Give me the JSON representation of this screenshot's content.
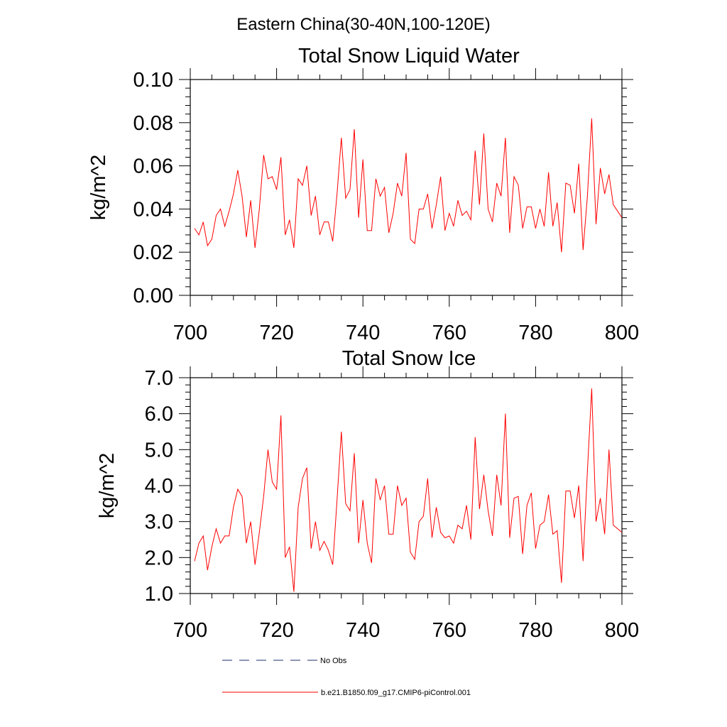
{
  "figure_title": "Eastern China(30-40N,100-120E)",
  "chart_data": [
    {
      "type": "line",
      "title": "Total Snow Liquid Water",
      "ylabel": "kg/m^2",
      "xlabel": "",
      "xlim": [
        700,
        800
      ],
      "ylim": [
        0.0,
        0.1
      ],
      "xticks": [
        700,
        720,
        740,
        760,
        780,
        800
      ],
      "yticks": [
        0.0,
        0.02,
        0.04,
        0.06,
        0.08,
        0.1
      ],
      "ytick_labels": [
        "0.00",
        "0.02",
        "0.04",
        "0.06",
        "0.08",
        "0.10"
      ],
      "series": [
        {
          "name": "b.e21.B1850.f09_g17.CMIP6-piControl.001",
          "color": "#ff0000",
          "x_start": 701,
          "values": [
            0.031,
            0.028,
            0.034,
            0.023,
            0.026,
            0.037,
            0.04,
            0.032,
            0.039,
            0.047,
            0.058,
            0.046,
            0.027,
            0.044,
            0.022,
            0.04,
            0.065,
            0.054,
            0.055,
            0.049,
            0.064,
            0.028,
            0.035,
            0.022,
            0.054,
            0.051,
            0.06,
            0.037,
            0.046,
            0.028,
            0.034,
            0.034,
            0.025,
            0.047,
            0.073,
            0.045,
            0.049,
            0.077,
            0.036,
            0.063,
            0.03,
            0.03,
            0.054,
            0.046,
            0.05,
            0.029,
            0.038,
            0.052,
            0.046,
            0.066,
            0.026,
            0.024,
            0.04,
            0.04,
            0.047,
            0.031,
            0.042,
            0.055,
            0.03,
            0.038,
            0.032,
            0.044,
            0.037,
            0.039,
            0.035,
            0.067,
            0.042,
            0.075,
            0.04,
            0.034,
            0.052,
            0.046,
            0.073,
            0.029,
            0.055,
            0.051,
            0.031,
            0.041,
            0.041,
            0.031,
            0.04,
            0.032,
            0.057,
            0.032,
            0.043,
            0.02,
            0.052,
            0.051,
            0.038,
            0.061,
            0.021,
            0.046,
            0.082,
            0.033,
            0.059,
            0.047,
            0.056,
            0.042,
            0.039,
            0.036
          ]
        }
      ]
    },
    {
      "type": "line",
      "title": "Total Snow Ice",
      "ylabel": "kg/m^2",
      "xlabel": "",
      "xlim": [
        700,
        800
      ],
      "ylim": [
        1.0,
        7.0
      ],
      "xticks": [
        700,
        720,
        740,
        760,
        780,
        800
      ],
      "yticks": [
        1.0,
        2.0,
        3.0,
        4.0,
        5.0,
        6.0,
        7.0
      ],
      "ytick_labels": [
        "1.0",
        "2.0",
        "3.0",
        "4.0",
        "5.0",
        "6.0",
        "7.0"
      ],
      "series": [
        {
          "name": "b.e21.B1850.f09_g17.CMIP6-piControl.001",
          "color": "#ff0000",
          "x_start": 701,
          "values": [
            1.9,
            2.4,
            2.6,
            1.65,
            2.3,
            2.8,
            2.4,
            2.6,
            2.6,
            3.4,
            3.9,
            3.7,
            2.4,
            3.0,
            1.8,
            2.7,
            3.7,
            5.0,
            4.1,
            3.9,
            5.95,
            2.0,
            2.3,
            1.05,
            3.4,
            4.2,
            4.5,
            2.25,
            3.0,
            2.2,
            2.45,
            2.2,
            1.8,
            3.6,
            5.5,
            3.5,
            3.3,
            4.9,
            2.4,
            3.6,
            2.4,
            1.85,
            4.2,
            3.6,
            4.0,
            2.65,
            2.65,
            4.0,
            3.45,
            3.65,
            2.15,
            1.95,
            3.0,
            3.15,
            4.2,
            2.55,
            3.4,
            2.7,
            2.55,
            2.6,
            2.4,
            2.9,
            2.8,
            3.45,
            2.5,
            5.35,
            3.35,
            4.3,
            3.3,
            2.6,
            4.3,
            3.45,
            6.0,
            2.55,
            3.65,
            3.7,
            2.1,
            3.45,
            3.8,
            2.25,
            2.9,
            3.0,
            3.75,
            2.65,
            2.75,
            1.3,
            3.85,
            3.85,
            3.1,
            4.0,
            1.9,
            4.4,
            6.7,
            3.0,
            3.65,
            2.65,
            5.0,
            2.9,
            2.8,
            2.7
          ]
        }
      ]
    }
  ],
  "legend": [
    {
      "label": "No Obs",
      "style": "dashed",
      "color": "#1f2f6f"
    },
    {
      "label": "b.e21.B1850.f09_g17.CMIP6-piControl.001",
      "style": "solid",
      "color": "#ff0000"
    }
  ]
}
